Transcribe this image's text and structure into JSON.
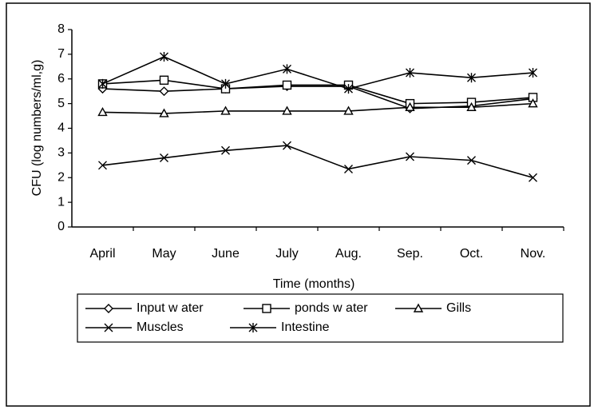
{
  "chart_data": {
    "type": "line",
    "xlabel": "Time (months)",
    "ylabel": "CFU (log numbers/ml,g)",
    "categories": [
      "April",
      "May",
      "June",
      "July",
      "Aug.",
      "Sep.",
      "Oct.",
      "Nov."
    ],
    "series": [
      {
        "name": "Input w ater",
        "color": "#000000",
        "marker": "diamond",
        "values": [
          5.6,
          5.5,
          5.6,
          5.7,
          5.7,
          4.8,
          4.9,
          5.2
        ]
      },
      {
        "name": "ponds w ater",
        "color": "#000000",
        "marker": "square",
        "values": [
          5.8,
          5.95,
          5.6,
          5.75,
          5.75,
          5.0,
          5.05,
          5.25
        ]
      },
      {
        "name": "Gills",
        "color": "#000000",
        "marker": "triangle",
        "values": [
          4.65,
          4.6,
          4.7,
          4.7,
          4.7,
          4.85,
          4.85,
          5.0
        ]
      },
      {
        "name": "Muscles",
        "color": "#000000",
        "marker": "x",
        "values": [
          2.5,
          2.8,
          3.1,
          3.3,
          2.35,
          2.85,
          2.7,
          2.0
        ]
      },
      {
        "name": "Intestine",
        "color": "#000000",
        "marker": "star",
        "values": [
          5.8,
          6.9,
          5.8,
          6.4,
          5.6,
          6.25,
          6.05,
          6.25
        ]
      }
    ],
    "ylim": [
      0,
      8
    ],
    "yticks": [
      0,
      1,
      2,
      3,
      4,
      5,
      6,
      7,
      8
    ],
    "grid": false
  }
}
